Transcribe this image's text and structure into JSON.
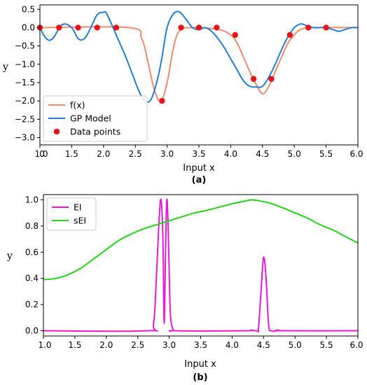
{
  "chart_data": [
    {
      "id": "a",
      "type": "line",
      "caption": "(a)",
      "xlabel": "Input x",
      "ylabel": "y",
      "xlim": [
        1.0,
        6.0
      ],
      "ylim": [
        -3.2,
        0.62
      ],
      "xticks": [
        1.0,
        1.5,
        2.0,
        2.5,
        3.0,
        3.5,
        4.0,
        4.5,
        5.0,
        5.5,
        6.0
      ],
      "xtick_labels": [
        "1.0",
        "1.5",
        "2.0",
        "2.5",
        "3.0",
        "3.5",
        "4.0",
        "4.5",
        "5.0",
        "5.5",
        "6.0"
      ],
      "yticks": [
        0.5,
        0.0,
        -0.5,
        -1.0,
        -1.5,
        -2.0,
        -2.5,
        -3.0
      ],
      "ytick_labels": [
        "0.5",
        "0.0",
        "−0.5",
        "−1.0",
        "−1.5",
        "−2.0",
        "−2.5",
        "−3.0"
      ],
      "legend_position": "lower-left",
      "series": [
        {
          "name": "f(x)",
          "kind": "line",
          "color": "#f4896b",
          "x": [
            1.0,
            2.4,
            2.6,
            2.7,
            2.8,
            2.9,
            3.0,
            3.1,
            3.2,
            3.4,
            3.8,
            4.0,
            4.1,
            4.2,
            4.3,
            4.4,
            4.5,
            4.6,
            4.7,
            4.8,
            4.9,
            5.0,
            5.1,
            5.3,
            6.0
          ],
          "y": [
            0.0,
            0.0,
            -0.3,
            -0.95,
            -1.7,
            -2.0,
            -1.5,
            -0.55,
            -0.08,
            0.0,
            -0.05,
            -0.2,
            -0.42,
            -0.8,
            -1.2,
            -1.55,
            -1.8,
            -1.6,
            -1.2,
            -0.8,
            -0.42,
            -0.2,
            -0.05,
            0.0,
            0.0
          ]
        },
        {
          "name": "GP Model",
          "kind": "line",
          "color": "#1f7fd6",
          "x": [
            1.0,
            1.1,
            1.2,
            1.35,
            1.5,
            1.6,
            1.7,
            1.8,
            1.9,
            2.0,
            2.05,
            2.15,
            2.25,
            2.35,
            2.45,
            2.55,
            2.65,
            2.75,
            2.85,
            2.92,
            3.0,
            3.1,
            3.2,
            3.3,
            3.4,
            3.5,
            3.6,
            3.7,
            3.8,
            3.9,
            4.0,
            4.1,
            4.2,
            4.3,
            4.4,
            4.5,
            4.6,
            4.7,
            4.8,
            4.9,
            5.0,
            5.1,
            5.2,
            5.3,
            5.4,
            5.5,
            5.6,
            5.7,
            5.8,
            5.9,
            6.0
          ],
          "y": [
            0.0,
            -0.3,
            -0.3,
            0.08,
            0.0,
            -0.3,
            -0.3,
            0.0,
            0.35,
            0.42,
            0.38,
            0.0,
            -0.4,
            -0.8,
            -1.25,
            -1.7,
            -2.0,
            -1.95,
            -1.4,
            -0.8,
            0.0,
            0.38,
            0.42,
            0.22,
            0.0,
            -0.05,
            0.0,
            -0.1,
            -0.3,
            -0.55,
            -0.85,
            -1.15,
            -1.45,
            -1.6,
            -1.62,
            -1.6,
            -1.35,
            -1.0,
            -0.6,
            -0.25,
            0.0,
            0.1,
            0.05,
            0.0,
            0.0,
            0.0,
            -0.05,
            -0.1,
            -0.05,
            0.0,
            0.0
          ]
        },
        {
          "name": "Data points",
          "kind": "scatter",
          "color": "#e8141b",
          "x": [
            1.0,
            1.3,
            1.6,
            1.9,
            2.2,
            2.92,
            3.22,
            3.5,
            3.78,
            4.07,
            4.36,
            4.64,
            4.93,
            5.22,
            5.5
          ],
          "y": [
            0.0,
            0.0,
            0.0,
            0.0,
            0.0,
            -2.0,
            0.0,
            0.0,
            0.0,
            -0.2,
            -1.4,
            -1.4,
            -0.2,
            0.0,
            0.0
          ]
        }
      ],
      "extra_tick_text": "0",
      "extra_tick_x": 1.1
    },
    {
      "id": "b",
      "type": "line",
      "caption": "(b)",
      "xlabel": "Input x",
      "ylabel": "y",
      "xlim": [
        1.0,
        6.0
      ],
      "ylim": [
        -0.04,
        1.04
      ],
      "xticks": [
        1.0,
        1.5,
        2.0,
        2.5,
        3.0,
        3.5,
        4.0,
        4.5,
        5.0,
        5.5,
        6.0
      ],
      "xtick_labels": [
        "1.0",
        "1.5",
        "2.0",
        "2.5",
        "3.0",
        "3.5",
        "4.0",
        "4.5",
        "5.0",
        "5.5",
        "6.0"
      ],
      "yticks": [
        0.0,
        0.2,
        0.4,
        0.6,
        0.8,
        1.0
      ],
      "ytick_labels": [
        "0.0",
        "0.2",
        "0.4",
        "0.6",
        "0.8",
        "1.0"
      ],
      "legend_position": "upper-left",
      "series": [
        {
          "name": "EI",
          "kind": "line",
          "color": "#e81ad4",
          "x": [
            1.0,
            2.65,
            2.75,
            2.8,
            2.84,
            2.87,
            2.9,
            2.92,
            2.94,
            2.96,
            2.98,
            3.0,
            3.02,
            3.06,
            3.1,
            4.2,
            4.3,
            4.4,
            4.42,
            4.46,
            4.5,
            4.54,
            4.58,
            4.62,
            4.7,
            4.75,
            4.8,
            6.0
          ],
          "y": [
            0.0,
            0.0,
            0.05,
            0.45,
            0.85,
            1.0,
            0.7,
            0.06,
            0.55,
            0.99,
            0.85,
            0.45,
            0.12,
            0.01,
            0.0,
            0.0,
            0.005,
            0.0,
            0.02,
            0.3,
            0.56,
            0.4,
            0.05,
            0.0,
            0.0,
            0.005,
            0.0,
            0.0
          ]
        },
        {
          "name": "sEI",
          "kind": "line",
          "color": "#22d418",
          "x": [
            1.0,
            1.2,
            1.4,
            1.6,
            1.8,
            2.0,
            2.2,
            2.4,
            2.6,
            2.8,
            3.0,
            3.2,
            3.4,
            3.6,
            3.8,
            4.0,
            4.2,
            4.3,
            4.4,
            4.6,
            4.8,
            5.0,
            5.2,
            5.4,
            5.6,
            5.8,
            6.0
          ],
          "y": [
            0.39,
            0.4,
            0.43,
            0.48,
            0.55,
            0.62,
            0.69,
            0.74,
            0.78,
            0.81,
            0.84,
            0.87,
            0.9,
            0.92,
            0.945,
            0.97,
            0.99,
            1.0,
            0.995,
            0.975,
            0.94,
            0.9,
            0.86,
            0.81,
            0.77,
            0.72,
            0.67
          ]
        }
      ]
    }
  ]
}
